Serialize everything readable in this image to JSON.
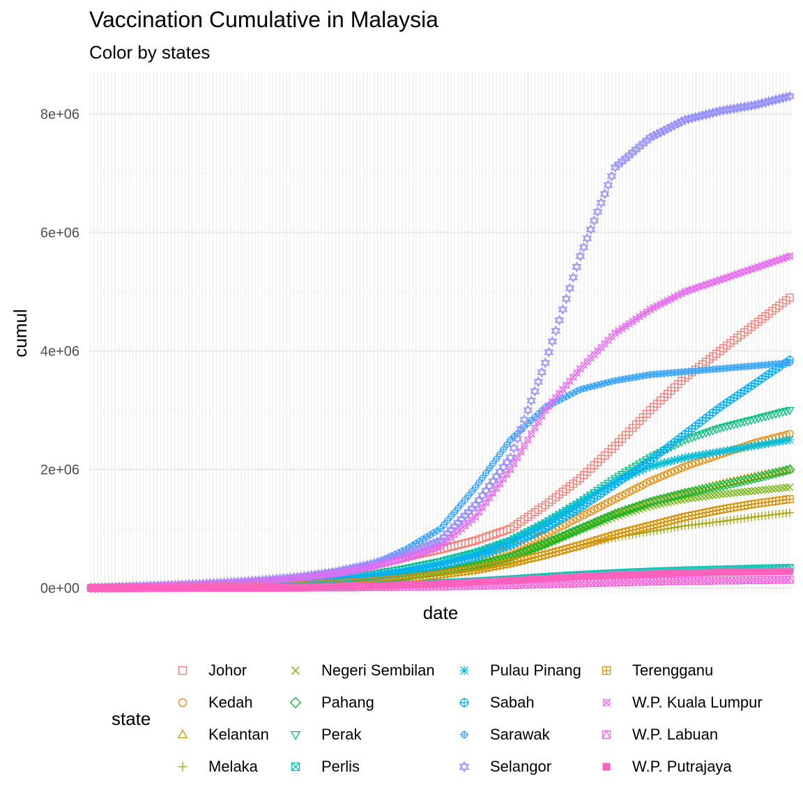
{
  "title": "Vaccination Cumulative in Malaysia",
  "subtitle": "Color by states",
  "chart_data": {
    "type": "scatter",
    "title": "Vaccination Cumulative in Malaysia",
    "subtitle": "Color by states",
    "xlabel": "date",
    "ylabel": "cumul",
    "x_tick_labels": "none",
    "y_ticks": [
      0,
      2000000,
      4000000,
      6000000,
      8000000
    ],
    "y_tick_labels": [
      "0e+00",
      "2e+06",
      "4e+06",
      "6e+06",
      "8e+06"
    ],
    "ylim": [
      -100000,
      8700000
    ],
    "x": [
      "d0",
      "d10",
      "d20",
      "d30",
      "d40",
      "d50",
      "d60",
      "d70",
      "d80",
      "d90",
      "d100",
      "d110",
      "d120",
      "d130",
      "d140",
      "d150",
      "d160",
      "d170",
      "d180",
      "d190",
      "d200"
    ],
    "grid": true,
    "legend_position": "bottom",
    "legend_title": "state",
    "series": [
      {
        "name": "Johor",
        "color": "#F8766D",
        "shape": "square-open",
        "values": [
          0,
          15000,
          30000,
          50000,
          75000,
          110000,
          170000,
          260000,
          380000,
          520000,
          650000,
          800000,
          1000000,
          1400000,
          1850000,
          2400000,
          3000000,
          3550000,
          4000000,
          4450000,
          4900000
        ]
      },
      {
        "name": "Kedah",
        "color": "#E58700",
        "shape": "circle-open",
        "values": [
          0,
          8000,
          16000,
          25000,
          38000,
          55000,
          80000,
          120000,
          180000,
          260000,
          350000,
          470000,
          650000,
          900000,
          1200000,
          1500000,
          1800000,
          2050000,
          2250000,
          2450000,
          2600000
        ]
      },
      {
        "name": "Kelantan",
        "color": "#C99800",
        "shape": "triangle-open",
        "values": [
          0,
          6000,
          12000,
          20000,
          30000,
          45000,
          65000,
          95000,
          140000,
          200000,
          280000,
          380000,
          520000,
          750000,
          1000000,
          1250000,
          1450000,
          1600000,
          1750000,
          1880000,
          2000000
        ]
      },
      {
        "name": "Melaka",
        "color": "#A3A500",
        "shape": "plus",
        "values": [
          0,
          4000,
          8000,
          13000,
          20000,
          30000,
          45000,
          68000,
          100000,
          150000,
          210000,
          290000,
          400000,
          560000,
          720000,
          850000,
          950000,
          1050000,
          1120000,
          1200000,
          1270000
        ]
      },
      {
        "name": "Negeri Sembilan",
        "color": "#6BB100",
        "shape": "cross",
        "values": [
          0,
          5000,
          10000,
          17000,
          26000,
          38000,
          55000,
          82000,
          125000,
          180000,
          260000,
          360000,
          500000,
          730000,
          980000,
          1200000,
          1380000,
          1500000,
          1580000,
          1640000,
          1700000
        ]
      },
      {
        "name": "Pahang",
        "color": "#00BA38",
        "shape": "diamond-open",
        "values": [
          0,
          6000,
          12000,
          20000,
          30000,
          44000,
          64000,
          94000,
          140000,
          200000,
          280000,
          380000,
          520000,
          750000,
          1000000,
          1250000,
          1450000,
          1600000,
          1720000,
          1850000,
          2000000
        ]
      },
      {
        "name": "Perak",
        "color": "#00BF7D",
        "shape": "triangle-down-open",
        "values": [
          0,
          10000,
          20000,
          33000,
          50000,
          72000,
          105000,
          155000,
          230000,
          330000,
          450000,
          600000,
          800000,
          1100000,
          1450000,
          1850000,
          2200000,
          2500000,
          2700000,
          2850000,
          3000000
        ]
      },
      {
        "name": "Perlis",
        "color": "#00C0AF",
        "shape": "square-cross",
        "values": [
          0,
          1500,
          3000,
          5000,
          8000,
          12000,
          18000,
          27000,
          40000,
          58000,
          82000,
          110000,
          145000,
          185000,
          220000,
          250000,
          275000,
          295000,
          310000,
          325000,
          340000
        ]
      },
      {
        "name": "Pulau Pinang",
        "color": "#00BCD8",
        "shape": "asterisk",
        "values": [
          0,
          9000,
          18000,
          30000,
          45000,
          65000,
          95000,
          140000,
          210000,
          300000,
          420000,
          580000,
          800000,
          1100000,
          1450000,
          1800000,
          2050000,
          2200000,
          2300000,
          2400000,
          2500000
        ]
      },
      {
        "name": "Sabah",
        "color": "#00B0F6",
        "shape": "circle-plus",
        "values": [
          0,
          8000,
          16000,
          26000,
          40000,
          58000,
          85000,
          125000,
          185000,
          270000,
          380000,
          520000,
          720000,
          1000000,
          1350000,
          1750000,
          2150000,
          2600000,
          3050000,
          3450000,
          3850000
        ]
      },
      {
        "name": "Sarawak",
        "color": "#35A2FF",
        "shape": "circle-cross",
        "values": [
          0,
          12000,
          25000,
          40000,
          60000,
          90000,
          140000,
          220000,
          380000,
          650000,
          1000000,
          1700000,
          2500000,
          3050000,
          3350000,
          3500000,
          3600000,
          3650000,
          3700000,
          3750000,
          3800000
        ]
      },
      {
        "name": "Selangor",
        "color": "#9590FF",
        "shape": "star-of-david",
        "values": [
          0,
          20000,
          40000,
          65000,
          95000,
          135000,
          190000,
          270000,
          400000,
          580000,
          800000,
          1400000,
          2200000,
          3800000,
          5600000,
          7100000,
          7600000,
          7900000,
          8050000,
          8150000,
          8300000
        ]
      },
      {
        "name": "Terengganu",
        "color": "#D89000",
        "shape": "square-plus",
        "values": [
          0,
          5000,
          10000,
          16000,
          24000,
          35000,
          50000,
          75000,
          110000,
          160000,
          230000,
          310000,
          420000,
          560000,
          720000,
          900000,
          1050000,
          1200000,
          1320000,
          1420000,
          1500000
        ]
      },
      {
        "name": "W.P. Kuala Lumpur",
        "color": "#E76BF3",
        "shape": "circle-x",
        "values": [
          0,
          18000,
          36000,
          58000,
          85000,
          120000,
          170000,
          240000,
          350000,
          500000,
          700000,
          1200000,
          2000000,
          3000000,
          3700000,
          4300000,
          4700000,
          5000000,
          5200000,
          5400000,
          5600000
        ]
      },
      {
        "name": "W.P. Labuan",
        "color": "#FA62DB",
        "shape": "square-triangle",
        "values": [
          0,
          600,
          1200,
          2000,
          3000,
          4500,
          6500,
          9500,
          14000,
          20000,
          28000,
          38000,
          50000,
          65000,
          80000,
          95000,
          108000,
          118000,
          126000,
          133000,
          140000
        ]
      },
      {
        "name": "W.P. Putrajaya",
        "color": "#FF62BC",
        "shape": "square-filled",
        "values": [
          0,
          1500,
          3000,
          5000,
          7500,
          11000,
          16000,
          24000,
          36000,
          52000,
          72000,
          96000,
          125000,
          158000,
          190000,
          215000,
          235000,
          250000,
          262000,
          272000,
          280000
        ]
      }
    ]
  }
}
